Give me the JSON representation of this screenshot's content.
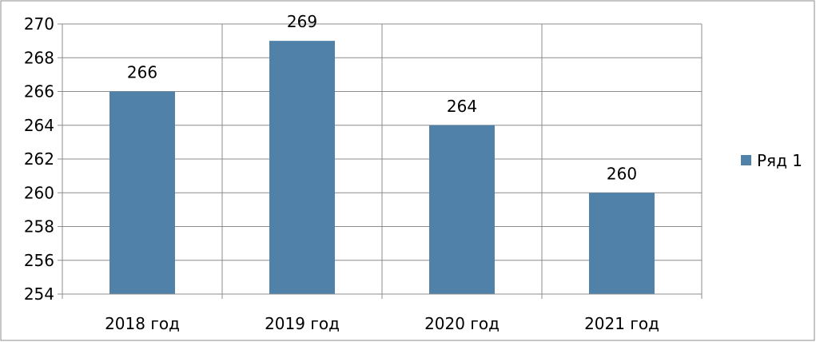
{
  "chart_data": {
    "type": "bar",
    "title": "",
    "xlabel": "",
    "ylabel": "",
    "categories": [
      "2018 год",
      "2019 год",
      "2020 год",
      "2021 год"
    ],
    "series": [
      {
        "name": "Ряд 1",
        "values": [
          266,
          269,
          264,
          260
        ],
        "color": "#4f81a9"
      }
    ],
    "ylim": [
      254,
      270
    ],
    "yticks": [
      254,
      256,
      258,
      260,
      262,
      264,
      266,
      268,
      270
    ],
    "grid": true,
    "data_labels": true,
    "legend_position": "right"
  }
}
